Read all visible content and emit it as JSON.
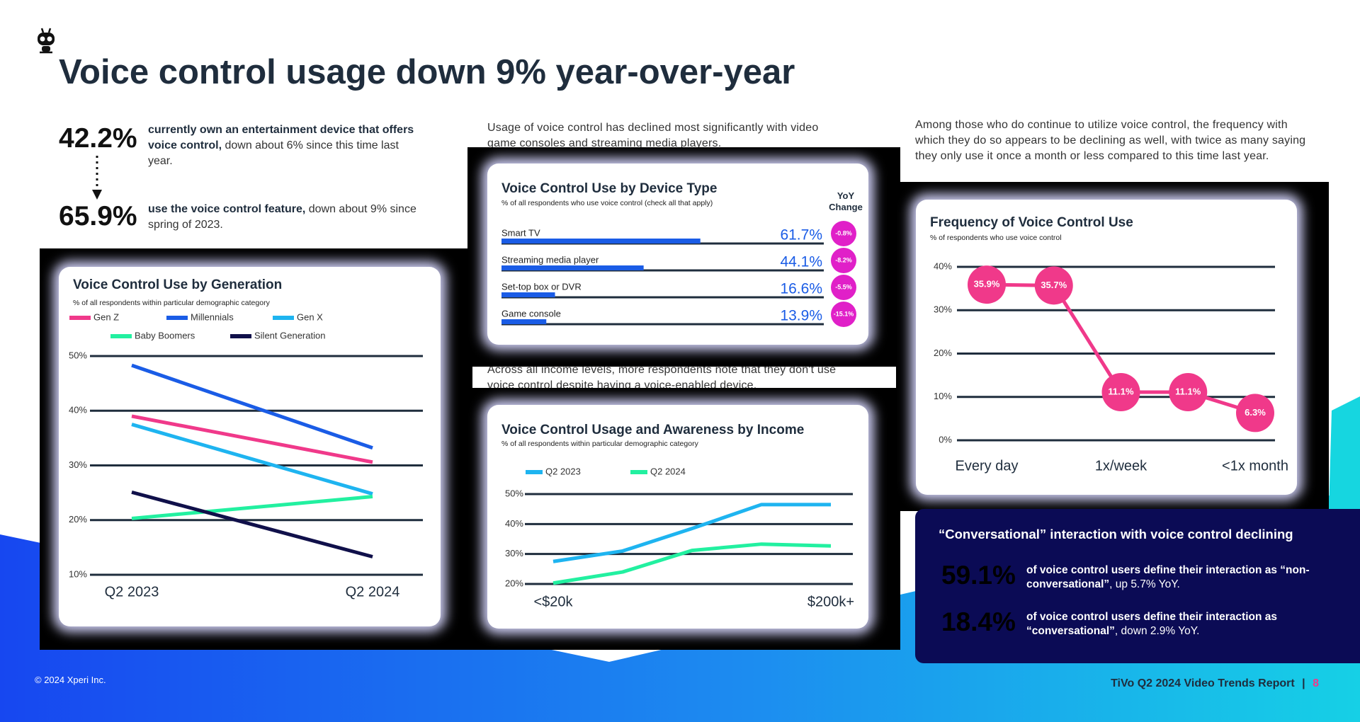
{
  "title": "Voice control usage down 9% year-over-year",
  "stats": [
    {
      "value": "42.2%",
      "bold": "currently own an entertainment device that offers voice control,",
      "text": "down about 6% since this time last year."
    },
    {
      "value": "65.9%",
      "bold": "use the voice control feature,",
      "text": "down about 9% since spring of 2023."
    }
  ],
  "intro_middle": "Usage of voice control has declined most significantly with video game consoles and streaming media players.",
  "intro_right": "Among those who do continue to utilize voice control, the frequency with which they do so appears to be declining as well, with twice as many saying they only use it once a month or less compared to this time last year.",
  "income_note": "Across all income levels, more respondents note that they don't use voice control despite having a voice-enabled device.",
  "chart_data": [
    {
      "type": "line",
      "title": "Voice Control Use by Generation",
      "subtitle": "% of all respondents within particular demographic category",
      "categories": [
        "Q2 2023",
        "Q2 2024"
      ],
      "series": [
        {
          "name": "Gen Z",
          "color": "#f0398a",
          "values": [
            39.0,
            30.6
          ]
        },
        {
          "name": "Millennials",
          "color": "#1a5ce6",
          "values": [
            48.3,
            33.2
          ]
        },
        {
          "name": "Gen X",
          "color": "#1eb4f0",
          "values": [
            37.5,
            24.8
          ]
        },
        {
          "name": "Baby Boomers",
          "color": "#22f0a0",
          "values": [
            20.3,
            24.3
          ]
        },
        {
          "name": "Silent Generation",
          "color": "#10104a",
          "values": [
            25.1,
            13.3
          ]
        }
      ],
      "ylim": [
        10,
        50
      ],
      "yticks": [
        {
          "value": 10,
          "label": "10%"
        },
        {
          "value": 20,
          "label": "20%"
        },
        {
          "value": 30,
          "label": "30%"
        },
        {
          "value": 40,
          "label": "40%"
        },
        {
          "value": 50,
          "label": "50%"
        }
      ],
      "grid": true
    },
    {
      "type": "bar",
      "orientation": "horizontal",
      "title": "Voice Control Use by Device Type",
      "subtitle": "% of all respondents who use voice control (check all that apply)",
      "categories": [
        "Smart TV",
        "Streaming media player",
        "Set-top box or DVR",
        "Game console"
      ],
      "values": [
        61.7,
        44.1,
        16.6,
        13.9
      ],
      "value_labels": [
        "61.7%",
        "44.1%",
        "16.6%",
        "13.9%"
      ],
      "color": "#1a5ce6",
      "xlim": [
        0,
        100
      ],
      "change_header": "YoY Change",
      "change_values": [
        -0.8,
        -8.2,
        -5.5,
        -15.1
      ],
      "change_labels": [
        "-0.8%",
        "-8.2%",
        "-5.5%",
        "-15.1%"
      ],
      "change_color": "#e020c8"
    },
    {
      "type": "line",
      "title": "Voice Control Usage and Awareness by Income",
      "subtitle": "% of all respondents within particular demographic category",
      "categories": [
        "<$20k",
        null,
        null,
        null,
        "$200k+"
      ],
      "series": [
        {
          "name": "Q2 2023",
          "color": "#1eb4f0",
          "values": [
            27.5,
            31,
            38.5,
            46.5,
            46.5
          ]
        },
        {
          "name": "Q2 2024",
          "color": "#22f0a0",
          "values": [
            20.3,
            24,
            31.2,
            33.3,
            32.7
          ]
        }
      ],
      "ylim": [
        20,
        50
      ],
      "yticks": [
        {
          "value": 20,
          "label": "20%"
        },
        {
          "value": 30,
          "label": "30%"
        },
        {
          "value": 40,
          "label": "40%"
        },
        {
          "value": 50,
          "label": "50%"
        }
      ],
      "grid": true
    },
    {
      "type": "line",
      "title": "Frequency of Voice Control Use",
      "subtitle": "% of respondents who use voice control",
      "categories": [
        "Every day",
        null,
        "1x/week",
        null,
        "<1x month"
      ],
      "values": [
        35.9,
        35.7,
        11.1,
        11.1,
        6.3
      ],
      "value_labels": [
        "35.9%",
        "35.7%",
        "11.1%",
        "11.1%",
        "6.3%"
      ],
      "color": "#f0398a",
      "ylim": [
        0,
        40
      ],
      "yticks": [
        {
          "value": 0,
          "label": "0%"
        },
        {
          "value": 10,
          "label": "10%"
        },
        {
          "value": 20,
          "label": "20%"
        },
        {
          "value": 30,
          "label": "30%"
        },
        {
          "value": 40,
          "label": "40%"
        }
      ],
      "grid": true
    }
  ],
  "conversational": {
    "title": "“Conversational” interaction with voice control declining",
    "items": [
      {
        "value": "59.1%",
        "bold": "of voice control users define their interaction as “non-conversational”",
        "text": ", up 5.7% YoY."
      },
      {
        "value": "18.4%",
        "bold": "of voice control users define their interaction as “conversational”",
        "text": ", down 2.9% YoY."
      }
    ]
  },
  "footer": {
    "copyright": "© 2024 Xperi Inc.",
    "report": "TiVo Q2 2024 Video Trends Report",
    "separator": "|",
    "page": "8"
  }
}
